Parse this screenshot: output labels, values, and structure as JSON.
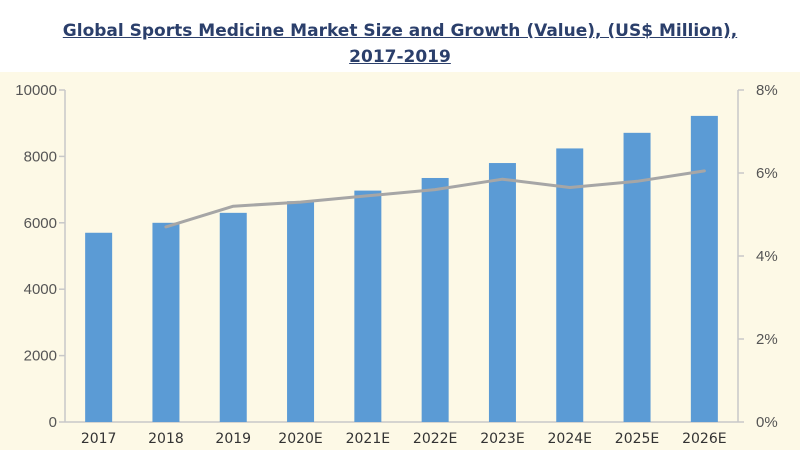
{
  "header": {
    "title_line1": "Global Sports Medicine Market Size and Growth (Value), (US$ Million),",
    "title_line2": "2017-2019"
  },
  "chart_data": {
    "type": "bar",
    "title": "Global Sports Medicine Market Size and Growth (Value), (US$ Million), 2017-2019",
    "categories": [
      "2017",
      "2018",
      "2019",
      "2020E",
      "2021E",
      "2022E",
      "2023E",
      "2024E",
      "2025E",
      "2026E"
    ],
    "series": [
      {
        "type": "bar",
        "axis": "left",
        "values": [
          5700,
          6000,
          6300,
          6650,
          6970,
          7350,
          7800,
          8240,
          8710,
          9220
        ]
      },
      {
        "type": "line",
        "axis": "right",
        "values": [
          null,
          4.7,
          5.2,
          5.3,
          5.45,
          5.6,
          5.85,
          5.65,
          5.8,
          6.05
        ]
      }
    ],
    "y_left": {
      "min": 0,
      "max": 10000,
      "ticks": [
        "0",
        "2000",
        "4000",
        "6000",
        "8000",
        "10000"
      ]
    },
    "y_right": {
      "min": 0,
      "max": 8,
      "ticks": [
        "0%",
        "2%",
        "4%",
        "6%",
        "8%"
      ]
    },
    "grid": false,
    "legend": "none",
    "colors": {
      "bar": "#5b9bd5",
      "line": "#a6a6a6",
      "axis": "#c8c8c8",
      "panel": "#fdf9e6"
    }
  }
}
